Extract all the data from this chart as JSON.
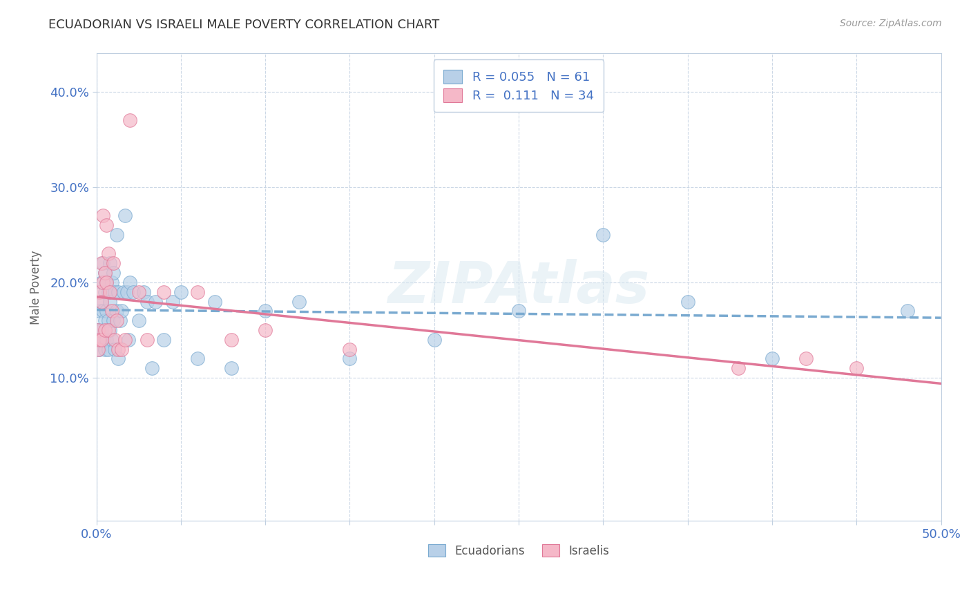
{
  "title": "ECUADORIAN VS ISRAELI MALE POVERTY CORRELATION CHART",
  "source": "Source: ZipAtlas.com",
  "ylabel": "Male Poverty",
  "xlim": [
    0.0,
    0.5
  ],
  "ylim": [
    -0.05,
    0.44
  ],
  "yticks": [
    0.1,
    0.2,
    0.3,
    0.4
  ],
  "ytick_labels": [
    "10.0%",
    "20.0%",
    "30.0%",
    "40.0%"
  ],
  "xticks": [
    0.0,
    0.05,
    0.1,
    0.15,
    0.2,
    0.25,
    0.3,
    0.35,
    0.4,
    0.45,
    0.5
  ],
  "blue_color": "#b8d0e8",
  "pink_color": "#f5b8c8",
  "blue_edge_color": "#7aaad0",
  "pink_edge_color": "#e07898",
  "blue_line_color": "#7aaad0",
  "pink_line_color": "#e07898",
  "watermark_text": "ZIPAtlas",
  "legend_text_blue": "R = 0.055   N = 61",
  "legend_text_pink": "R =  0.111   N = 34",
  "bottom_legend_blue": "Ecuadorians",
  "bottom_legend_pink": "Israelis",
  "ecuadorians_x": [
    0.001,
    0.001,
    0.002,
    0.002,
    0.003,
    0.003,
    0.003,
    0.004,
    0.004,
    0.004,
    0.005,
    0.005,
    0.005,
    0.005,
    0.006,
    0.006,
    0.006,
    0.007,
    0.007,
    0.007,
    0.008,
    0.008,
    0.008,
    0.009,
    0.009,
    0.01,
    0.01,
    0.011,
    0.011,
    0.012,
    0.012,
    0.013,
    0.013,
    0.014,
    0.015,
    0.016,
    0.017,
    0.018,
    0.019,
    0.02,
    0.022,
    0.025,
    0.028,
    0.03,
    0.033,
    0.035,
    0.04,
    0.045,
    0.05,
    0.06,
    0.07,
    0.08,
    0.1,
    0.12,
    0.15,
    0.2,
    0.25,
    0.3,
    0.35,
    0.4,
    0.48
  ],
  "ecuadorians_y": [
    0.15,
    0.14,
    0.17,
    0.13,
    0.2,
    0.18,
    0.15,
    0.22,
    0.17,
    0.14,
    0.21,
    0.19,
    0.16,
    0.13,
    0.2,
    0.17,
    0.14,
    0.19,
    0.16,
    0.13,
    0.22,
    0.18,
    0.15,
    0.2,
    0.14,
    0.21,
    0.16,
    0.19,
    0.13,
    0.25,
    0.17,
    0.19,
    0.12,
    0.16,
    0.17,
    0.19,
    0.27,
    0.19,
    0.14,
    0.2,
    0.19,
    0.16,
    0.19,
    0.18,
    0.11,
    0.18,
    0.14,
    0.18,
    0.19,
    0.12,
    0.18,
    0.11,
    0.17,
    0.18,
    0.12,
    0.14,
    0.17,
    0.25,
    0.18,
    0.12,
    0.17
  ],
  "israelis_x": [
    0.001,
    0.001,
    0.002,
    0.002,
    0.003,
    0.003,
    0.003,
    0.004,
    0.004,
    0.005,
    0.005,
    0.006,
    0.006,
    0.007,
    0.007,
    0.008,
    0.009,
    0.01,
    0.011,
    0.012,
    0.013,
    0.015,
    0.017,
    0.02,
    0.025,
    0.03,
    0.04,
    0.06,
    0.08,
    0.1,
    0.15,
    0.38,
    0.42,
    0.45
  ],
  "israelis_y": [
    0.15,
    0.13,
    0.19,
    0.14,
    0.22,
    0.18,
    0.14,
    0.27,
    0.2,
    0.21,
    0.15,
    0.26,
    0.2,
    0.23,
    0.15,
    0.19,
    0.17,
    0.22,
    0.14,
    0.16,
    0.13,
    0.13,
    0.14,
    0.37,
    0.19,
    0.14,
    0.19,
    0.19,
    0.14,
    0.15,
    0.13,
    0.11,
    0.12,
    0.11
  ]
}
